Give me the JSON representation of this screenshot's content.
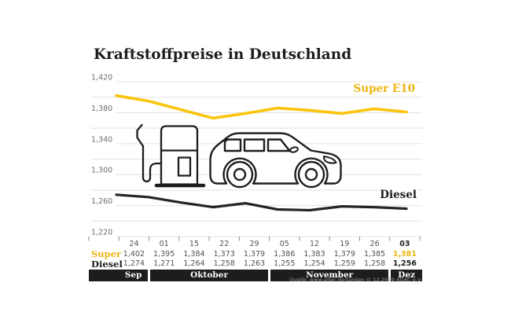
{
  "title": "Kraftstoffpreise in Deutschland",
  "legend": {
    "super": "Super E10",
    "diesel": "Diesel"
  },
  "chart_data": {
    "type": "line",
    "x_labels": [
      "24",
      "01",
      "15",
      "22",
      "29",
      "05",
      "12",
      "19",
      "26",
      "03"
    ],
    "series": [
      {
        "name": "Super E10",
        "color_key": "yellowLine",
        "values": [
          1402,
          1395,
          1384,
          1373,
          1379,
          1386,
          1383,
          1379,
          1385,
          1381
        ]
      },
      {
        "name": "Diesel",
        "color_key": "dieselLine",
        "values": [
          1274,
          1271,
          1264,
          1258,
          1263,
          1255,
          1254,
          1259,
          1258,
          1256
        ]
      }
    ],
    "ylim": [
      1220,
      1420
    ],
    "ytick_step": 20,
    "ylabel_step": 40,
    "ytick_labels": [
      "1,220",
      "1,260",
      "1,300",
      "1,340",
      "1,380",
      "1,420"
    ],
    "grid": true,
    "legend_position": "inline-right"
  },
  "table": {
    "row_labels": {
      "super": "Super",
      "diesel": "Diesel"
    },
    "dates": [
      "24",
      "01",
      "15",
      "22",
      "29",
      "05",
      "12",
      "19",
      "26",
      "03"
    ],
    "super_values": [
      "1,402",
      "1,395",
      "1,384",
      "1,373",
      "1,379",
      "1,386",
      "1,383",
      "1,379",
      "1,385",
      "1,381"
    ],
    "diesel_values": [
      "1,274",
      "1,271",
      "1,264",
      "1,258",
      "1,263",
      "1,255",
      "1,254",
      "1,259",
      "1,258",
      "1,256"
    ],
    "highlight_index": 9,
    "months": [
      {
        "label": "Sep",
        "from": 0,
        "to": 0,
        "flush_left": true
      },
      {
        "label": "Oktober",
        "from": 1,
        "to": 4
      },
      {
        "label": "November",
        "from": 5,
        "to": 8
      },
      {
        "label": "Dez",
        "from": 9,
        "to": 9,
        "flush_right": true
      }
    ]
  },
  "source": "Quelle: www.adac.de/tanken   © 12.2019 ADAC e.V.",
  "colors": {
    "ink": "#1D1D1B",
    "yellowLine": "#FBC40D",
    "yellowText": "#EEB40E",
    "dieselLine": "#252522",
    "grid": "#E4E4E4",
    "tick": "#8F8F8F",
    "axisLabel": "#6E6E6E",
    "cellText": "#515151",
    "bandBg": "#1D1D1B",
    "bandText": "#FFFFFF",
    "sourceText": "#9B9B9B"
  }
}
